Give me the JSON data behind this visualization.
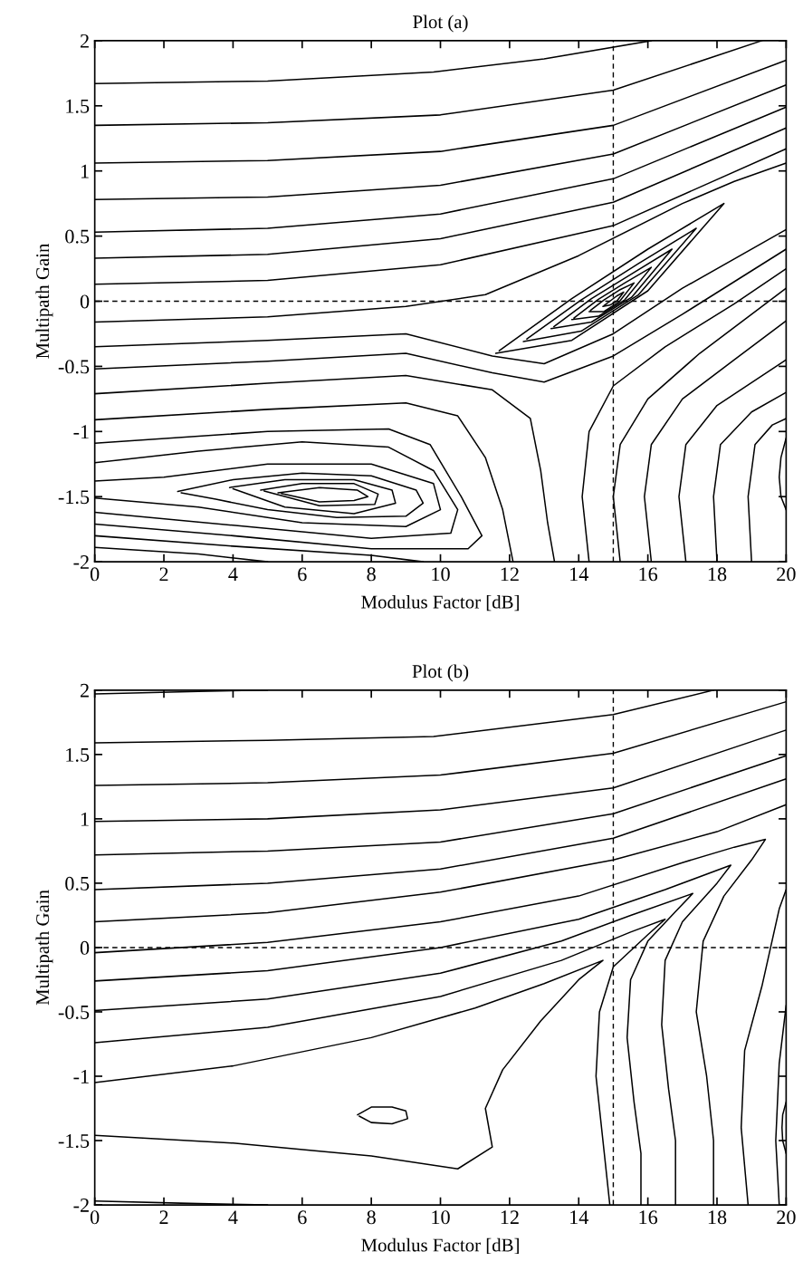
{
  "chart_data": [
    {
      "type": "line",
      "title": "Plot (a)",
      "xlabel": "Modulus Factor [dB]",
      "ylabel": "Multipath Gain",
      "xlim": [
        0,
        20
      ],
      "ylim": [
        -2,
        2
      ],
      "xticks": [
        0,
        2,
        4,
        6,
        8,
        10,
        12,
        14,
        16,
        18,
        20
      ],
      "yticks": [
        -2,
        -1.5,
        -1,
        -0.5,
        0,
        0.5,
        1,
        1.5,
        2
      ],
      "grid": false,
      "legend": false,
      "marker": "none",
      "line_style": "solid",
      "ref_lines": [
        {
          "axis": "x",
          "value": 15,
          "color": "#000000",
          "line_style": "dashed"
        },
        {
          "axis": "y",
          "value": 0,
          "color": "#000000",
          "line_style": "dashed"
        }
      ],
      "series": [
        {
          "color": "#000000",
          "x": [
            0,
            5,
            9.8,
            13,
            16.1
          ],
          "values": [
            1.67,
            1.69,
            1.76,
            1.86,
            2.0
          ]
        },
        {
          "color": "#000000",
          "x": [
            0,
            5,
            10,
            15,
            19.3
          ],
          "values": [
            1.35,
            1.37,
            1.43,
            1.62,
            2.0
          ]
        },
        {
          "color": "#000000",
          "x": [
            0,
            5,
            10,
            15,
            20
          ],
          "values": [
            1.06,
            1.08,
            1.15,
            1.35,
            1.85
          ]
        },
        {
          "color": "#000000",
          "x": [
            0,
            5,
            10,
            15,
            20
          ],
          "values": [
            0.78,
            0.8,
            0.89,
            1.13,
            1.66
          ]
        },
        {
          "color": "#000000",
          "x": [
            0,
            5,
            10,
            15,
            20
          ],
          "values": [
            0.53,
            0.56,
            0.67,
            0.94,
            1.49
          ]
        },
        {
          "color": "#000000",
          "x": [
            0,
            5,
            10,
            15,
            20
          ],
          "values": [
            0.33,
            0.36,
            0.48,
            0.76,
            1.33
          ]
        },
        {
          "color": "#000000",
          "x": [
            0,
            5,
            10,
            15,
            20
          ],
          "values": [
            0.13,
            0.16,
            0.28,
            0.58,
            1.17
          ]
        },
        {
          "color": "#000000",
          "x": [
            0,
            5,
            9,
            11.3,
            14,
            17,
            18.5,
            20
          ],
          "values": [
            -0.16,
            -0.12,
            -0.04,
            0.05,
            0.35,
            0.75,
            0.92,
            1.06
          ]
        },
        {
          "color": "#000000",
          "x": [
            11.6,
            13.8,
            16.0,
            18.2,
            16.0,
            13.8,
            11.7
          ],
          "values": [
            -0.4,
            -0.3,
            0.08,
            0.75,
            0.4,
            0.02,
            -0.38
          ]
        },
        {
          "color": "#000000",
          "x": [
            12.4,
            14.07,
            15.73,
            17.4,
            15.73,
            14.07,
            12.5
          ],
          "values": [
            -0.31,
            -0.23,
            0.05,
            0.56,
            0.29,
            0.01,
            -0.29
          ]
        },
        {
          "color": "#000000",
          "x": [
            13.2,
            14.37,
            15.53,
            16.7,
            15.53,
            14.37,
            13.28
          ],
          "values": [
            -0.21,
            -0.16,
            0.03,
            0.4,
            0.21,
            0.02,
            -0.195
          ]
        },
        {
          "color": "#000000",
          "x": [
            13.8,
            14.57,
            15.33,
            16.1,
            15.33,
            14.57,
            13.86
          ],
          "values": [
            -0.14,
            -0.115,
            0.01,
            0.26,
            0.14,
            0.015,
            -0.13
          ]
        },
        {
          "color": "#000000",
          "x": [
            14.3,
            14.73,
            15.17,
            15.6,
            15.17,
            14.73,
            14.34
          ],
          "values": [
            -0.08,
            -0.08,
            -0.005,
            0.14,
            0.085,
            0.01,
            -0.07
          ]
        },
        {
          "color": "#000000",
          "x": [
            14.7,
            14.9,
            15.1,
            15.3,
            15.1,
            14.9,
            14.73
          ],
          "values": [
            -0.04,
            -0.03,
            0.0,
            0.07,
            0.04,
            0.0,
            -0.034
          ]
        },
        {
          "color": "#000000",
          "x": [
            0,
            5,
            9,
            11.5,
            13,
            15,
            17,
            20
          ],
          "values": [
            -0.35,
            -0.3,
            -0.25,
            -0.42,
            -0.48,
            -0.25,
            0.1,
            0.55
          ]
        },
        {
          "color": "#000000",
          "x": [
            0,
            5,
            9,
            11.5,
            13,
            15,
            17,
            20
          ],
          "values": [
            -0.52,
            -0.46,
            -0.4,
            -0.55,
            -0.62,
            -0.42,
            -0.1,
            0.4
          ]
        },
        {
          "color": "#000000",
          "x": [
            0,
            5,
            9,
            11.5,
            12.6,
            12.9,
            13.1,
            13.3
          ],
          "values": [
            -0.71,
            -0.63,
            -0.57,
            -0.68,
            -0.9,
            -1.3,
            -1.7,
            -2.0
          ]
        },
        {
          "color": "#000000",
          "x": [
            14.3,
            14.1,
            14.3,
            15,
            16.5,
            18.5,
            20
          ],
          "values": [
            -2.0,
            -1.5,
            -1.0,
            -0.65,
            -0.35,
            -0.02,
            0.25
          ]
        },
        {
          "color": "#000000",
          "x": [
            15.2,
            15.0,
            15.2,
            16,
            17.5,
            20
          ],
          "values": [
            -2.0,
            -1.5,
            -1.1,
            -0.75,
            -0.4,
            0.1
          ]
        },
        {
          "color": "#000000",
          "x": [
            16.1,
            15.9,
            16.1,
            17,
            18.5,
            20
          ],
          "values": [
            -2.0,
            -1.5,
            -1.1,
            -0.75,
            -0.45,
            -0.15
          ]
        },
        {
          "color": "#000000",
          "x": [
            17.1,
            16.9,
            17.1,
            18,
            20
          ],
          "values": [
            -2.0,
            -1.5,
            -1.1,
            -0.8,
            -0.45
          ]
        },
        {
          "color": "#000000",
          "x": [
            18.0,
            17.9,
            18.1,
            19,
            20
          ],
          "values": [
            -2.0,
            -1.5,
            -1.1,
            -0.85,
            -0.7
          ]
        },
        {
          "color": "#000000",
          "x": [
            19.0,
            18.9,
            19.1,
            19.6,
            20
          ],
          "values": [
            -2.0,
            -1.5,
            -1.1,
            -0.95,
            -0.9
          ]
        },
        {
          "color": "#000000",
          "x": [
            20,
            19.85,
            19.8,
            19.85,
            20
          ],
          "values": [
            -1.05,
            -1.2,
            -1.35,
            -1.5,
            -1.6
          ]
        },
        {
          "color": "#000000",
          "x": [
            0,
            5,
            9,
            10.5,
            11.3,
            11.8,
            12.1
          ],
          "values": [
            -0.91,
            -0.83,
            -0.78,
            -0.88,
            -1.2,
            -1.6,
            -2.0
          ]
        },
        {
          "color": "#000000",
          "x": [
            0,
            5,
            8.5,
            9.7,
            10.6,
            11.2,
            10.8,
            8,
            4,
            0
          ],
          "values": [
            -1.09,
            -1.0,
            -0.98,
            -1.1,
            -1.5,
            -1.8,
            -1.9,
            -1.9,
            -1.8,
            -1.71
          ]
        },
        {
          "color": "#000000",
          "x": [
            0,
            3,
            6,
            8.5,
            9.8,
            10.5,
            10.3,
            8,
            4,
            0
          ],
          "values": [
            -1.24,
            -1.15,
            -1.08,
            -1.12,
            -1.3,
            -1.6,
            -1.78,
            -1.82,
            -1.72,
            -1.62
          ]
        },
        {
          "color": "#000000",
          "x": [
            0,
            2,
            5,
            8,
            9.8,
            10,
            9,
            6,
            3,
            0
          ],
          "values": [
            -1.38,
            -1.35,
            -1.25,
            -1.25,
            -1.4,
            -1.6,
            -1.73,
            -1.7,
            -1.58,
            -1.51
          ]
        },
        {
          "color": "#000000",
          "x": [
            2.4,
            4,
            6,
            8,
            9.3,
            9.5,
            9,
            7,
            5,
            3.5,
            2.5
          ],
          "values": [
            -1.46,
            -1.37,
            -1.32,
            -1.34,
            -1.45,
            -1.55,
            -1.65,
            -1.66,
            -1.6,
            -1.52,
            -1.47
          ]
        },
        {
          "color": "#000000",
          "x": [
            3.9,
            5.5,
            7.5,
            8.6,
            8.7,
            7.5,
            5.5,
            4.0
          ],
          "values": [
            -1.43,
            -1.37,
            -1.37,
            -1.45,
            -1.55,
            -1.63,
            -1.58,
            -1.44
          ]
        },
        {
          "color": "#000000",
          "x": [
            4.8,
            6,
            7.5,
            8.2,
            8.1,
            6.5,
            4.9
          ],
          "values": [
            -1.45,
            -1.4,
            -1.4,
            -1.48,
            -1.56,
            -1.57,
            -1.456
          ]
        },
        {
          "color": "#000000",
          "x": [
            5.3,
            6.5,
            7.6,
            7.9,
            7.5,
            6.5,
            5.4
          ],
          "values": [
            -1.47,
            -1.43,
            -1.45,
            -1.5,
            -1.53,
            -1.54,
            -1.476
          ]
        },
        {
          "color": "#000000",
          "x": [
            0,
            4,
            8,
            9.5
          ],
          "values": [
            -1.8,
            -1.88,
            -1.95,
            -2.0
          ]
        },
        {
          "color": "#000000",
          "x": [
            0,
            3,
            5
          ],
          "values": [
            -1.89,
            -1.94,
            -2.0
          ]
        }
      ]
    },
    {
      "type": "line",
      "title": "Plot (b)",
      "xlabel": "Modulus Factor [dB]",
      "ylabel": "Multipath Gain",
      "xlim": [
        0,
        20
      ],
      "ylim": [
        -2,
        2
      ],
      "xticks": [
        0,
        2,
        4,
        6,
        8,
        10,
        12,
        14,
        16,
        18,
        20
      ],
      "yticks": [
        -2,
        -1.5,
        -1,
        -0.5,
        0,
        0.5,
        1,
        1.5,
        2
      ],
      "grid": false,
      "legend": false,
      "marker": "none",
      "line_style": "solid",
      "ref_lines": [
        {
          "axis": "x",
          "value": 15,
          "color": "#000000",
          "line_style": "dashed"
        },
        {
          "axis": "y",
          "value": 0,
          "color": "#000000",
          "line_style": "dashed"
        }
      ],
      "series": [
        {
          "color": "#000000",
          "x": [
            0,
            3,
            5
          ],
          "values": [
            1.97,
            1.99,
            2.0
          ]
        },
        {
          "color": "#000000",
          "x": [
            0,
            5,
            9.8,
            15,
            17.9
          ],
          "values": [
            1.59,
            1.61,
            1.64,
            1.81,
            2.0
          ]
        },
        {
          "color": "#000000",
          "x": [
            0,
            5,
            10,
            15,
            20
          ],
          "values": [
            1.26,
            1.28,
            1.34,
            1.51,
            1.91
          ]
        },
        {
          "color": "#000000",
          "x": [
            0,
            5,
            10,
            15,
            20
          ],
          "values": [
            0.98,
            1.0,
            1.07,
            1.24,
            1.69
          ]
        },
        {
          "color": "#000000",
          "x": [
            0,
            5,
            10,
            15,
            20
          ],
          "values": [
            0.72,
            0.75,
            0.82,
            1.04,
            1.49
          ]
        },
        {
          "color": "#000000",
          "x": [
            0,
            5,
            10,
            15,
            20
          ],
          "values": [
            0.45,
            0.5,
            0.61,
            0.85,
            1.31
          ]
        },
        {
          "color": "#000000",
          "x": [
            0,
            5,
            10,
            15,
            18,
            20
          ],
          "values": [
            0.2,
            0.27,
            0.43,
            0.68,
            0.9,
            1.11
          ]
        },
        {
          "color": "#000000",
          "x": [
            0,
            5,
            10,
            14,
            17,
            18.5,
            19.4,
            19.0,
            18.2,
            17.6,
            17.4,
            17.7,
            17.9,
            17.9
          ],
          "values": [
            -0.04,
            0.04,
            0.2,
            0.4,
            0.66,
            0.78,
            0.84,
            0.68,
            0.4,
            0.05,
            -0.5,
            -1.0,
            -1.5,
            -2.0
          ]
        },
        {
          "color": "#000000",
          "x": [
            0,
            5,
            10,
            14,
            16.5,
            18.4,
            18.0,
            17,
            16.5,
            16.4,
            16.6,
            16.8,
            16.8
          ],
          "values": [
            -0.26,
            -0.18,
            0.0,
            0.22,
            0.45,
            0.64,
            0.5,
            0.2,
            -0.1,
            -0.6,
            -1.1,
            -1.5,
            -2.0
          ]
        },
        {
          "color": "#000000",
          "x": [
            0,
            5,
            10,
            13.5,
            15.5,
            17.3,
            16.8,
            16,
            15.5,
            15.4,
            15.6,
            15.8,
            15.8
          ],
          "values": [
            -0.49,
            -0.4,
            -0.2,
            0.05,
            0.25,
            0.42,
            0.28,
            0.05,
            -0.25,
            -0.7,
            -1.2,
            -1.6,
            -2.0
          ]
        },
        {
          "color": "#000000",
          "x": [
            0,
            5,
            10,
            13.5,
            15.5,
            16.5,
            16,
            15,
            14.6,
            14.5,
            14.7,
            14.9
          ],
          "values": [
            -0.74,
            -0.62,
            -0.38,
            -0.1,
            0.12,
            0.22,
            0.1,
            -0.15,
            -0.5,
            -1.0,
            -1.5,
            -2.0
          ]
        },
        {
          "color": "#000000",
          "x": [
            0,
            4,
            8,
            11,
            13,
            14.7,
            14.0,
            12.9,
            11.8,
            11.3,
            11.5,
            10.5,
            8,
            4,
            0
          ],
          "values": [
            -1.05,
            -0.92,
            -0.7,
            -0.47,
            -0.28,
            -0.1,
            -0.25,
            -0.57,
            -0.95,
            -1.25,
            -1.55,
            -1.72,
            -1.62,
            -1.52,
            -1.46
          ]
        },
        {
          "color": "#000000",
          "x": [
            18.9,
            18.7,
            18.8,
            19.3,
            19.8,
            20
          ],
          "values": [
            -2.0,
            -1.4,
            -0.8,
            -0.3,
            0.3,
            0.45
          ]
        },
        {
          "color": "#000000",
          "x": [
            19.8,
            19.7,
            19.8,
            20
          ],
          "values": [
            -2.0,
            -1.5,
            -0.9,
            -0.45
          ]
        },
        {
          "color": "#000000",
          "x": [
            20,
            19.9,
            19.88,
            19.9,
            20
          ],
          "values": [
            -1.2,
            -1.3,
            -1.4,
            -1.5,
            -1.6
          ]
        },
        {
          "color": "#000000",
          "x": [
            7.6,
            8.0,
            8.6,
            9.0,
            9.05,
            8.6,
            8.0,
            7.65
          ],
          "values": [
            -1.3,
            -1.24,
            -1.24,
            -1.27,
            -1.33,
            -1.37,
            -1.36,
            -1.31
          ]
        },
        {
          "color": "#000000",
          "x": [
            0,
            3,
            5
          ],
          "values": [
            -1.97,
            -1.99,
            -2.0
          ]
        }
      ]
    }
  ]
}
